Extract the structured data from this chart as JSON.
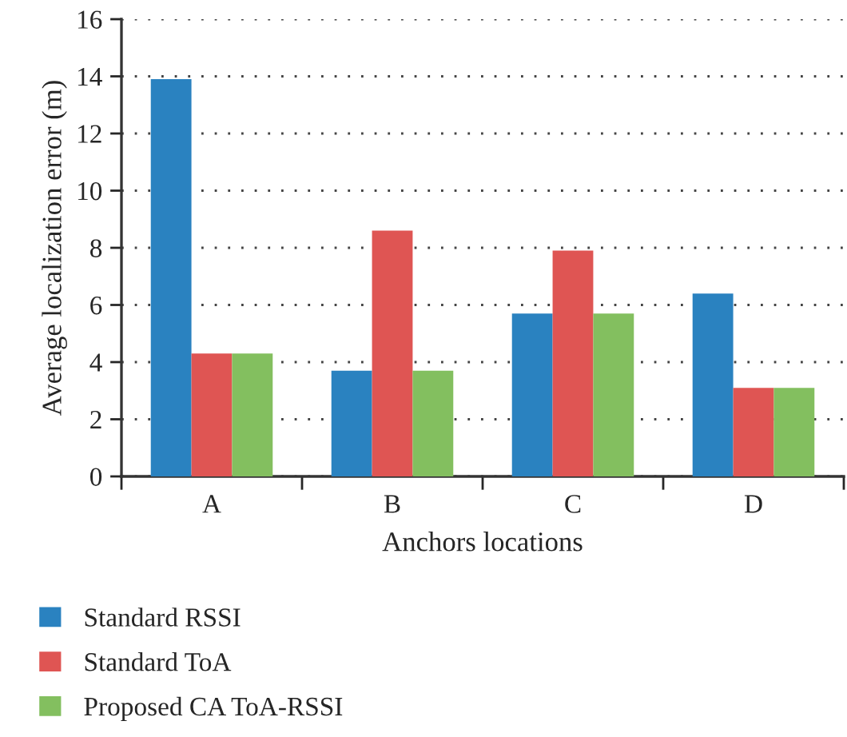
{
  "chart_data": {
    "type": "bar",
    "xlabel": "Anchors locations",
    "ylabel": "Average localization error (m)",
    "categories": [
      "A",
      "B",
      "C",
      "D"
    ],
    "series": [
      {
        "name": "Standard RSSI",
        "color": "#2a82c0",
        "values": [
          13.9,
          3.7,
          5.7,
          6.4
        ]
      },
      {
        "name": "Standard ToA",
        "color": "#df5553",
        "values": [
          4.3,
          8.6,
          7.9,
          3.1
        ]
      },
      {
        "name": "Proposed CA ToA-RSSI",
        "color": "#83bf5f",
        "values": [
          4.3,
          3.7,
          5.7,
          3.1
        ]
      }
    ],
    "ylim": [
      0,
      16
    ],
    "yticks": [
      0,
      2,
      4,
      6,
      8,
      10,
      12,
      14,
      16
    ],
    "grid": "y",
    "legend": "bottom"
  }
}
